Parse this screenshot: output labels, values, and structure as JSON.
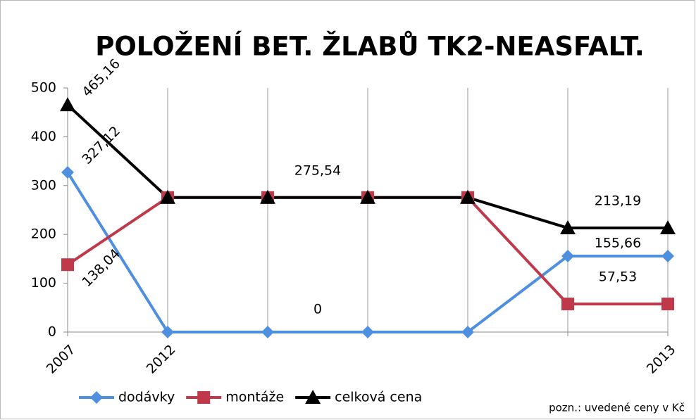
{
  "chart_data": {
    "type": "line",
    "title": "POLOŽENÍ BET. ŽLABŮ TK2-NEASFALT.",
    "note": "pozn.: uvedené ceny v Kč",
    "categories": [
      "2007",
      "2012",
      null,
      null,
      null,
      null,
      "2013"
    ],
    "ylim": [
      0,
      500
    ],
    "yticks": [
      0,
      100,
      200,
      300,
      400,
      500
    ],
    "grid": "vertical",
    "legend": "bottom",
    "series": [
      {
        "name": "dodávky",
        "color": "#4f8fe0",
        "marker": "diamond",
        "values": [
          327.12,
          0,
          0,
          0,
          0,
          155.66,
          155.66
        ],
        "value_labels": [
          "327,12",
          null,
          "0",
          null,
          null,
          "155,66",
          null
        ]
      },
      {
        "name": "montáže",
        "color": "#c0394b",
        "marker": "square",
        "values": [
          138.04,
          275.54,
          275.54,
          275.54,
          275.54,
          57.53,
          57.53
        ],
        "value_labels": [
          "138,04",
          null,
          null,
          null,
          null,
          "57,53",
          null
        ]
      },
      {
        "name": "celková cena",
        "color": "#000000",
        "marker": "triangle",
        "values": [
          465.16,
          275.54,
          275.54,
          275.54,
          275.54,
          213.19,
          213.19
        ],
        "value_labels": [
          "465,16",
          null,
          "275,54",
          null,
          null,
          "213,19",
          null
        ]
      }
    ]
  }
}
